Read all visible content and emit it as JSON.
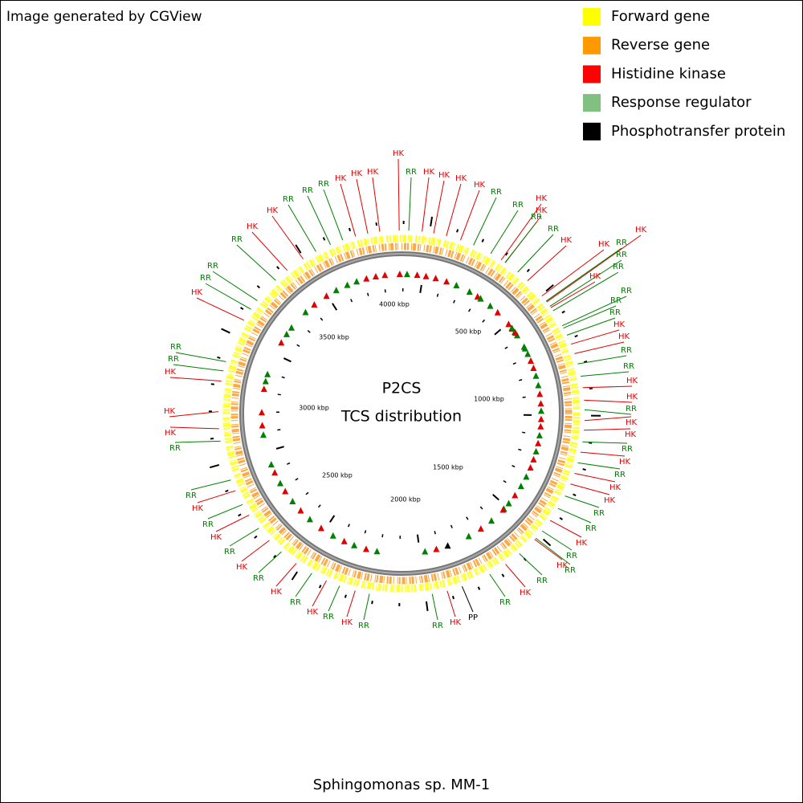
{
  "header": {
    "credit": "Image generated by CGView"
  },
  "legend": [
    {
      "label": "Forward gene",
      "color": "#ffff00"
    },
    {
      "label": "Reverse gene",
      "color": "#ff9900"
    },
    {
      "label": "Histidine kinase",
      "color": "#ff0000"
    },
    {
      "label": "Response regulator",
      "color": "#80c080"
    },
    {
      "label": "Phosphotransfer protein",
      "color": "#000000"
    }
  ],
  "center": {
    "title": "P2CS",
    "subtitle": "TCS distribution"
  },
  "ruler": [
    "4000 kbp",
    "500 kbp",
    "1000 kbp",
    "1500 kbp",
    "2000 kbp",
    "2500 kbp",
    "3000 kbp",
    "3500 kbp"
  ],
  "features": [
    {
      "label": "HK",
      "color": "#e00000"
    },
    {
      "label": "RR",
      "color": "#008000"
    },
    {
      "label": "HK",
      "color": "#e00000"
    },
    {
      "label": "HK",
      "color": "#e00000"
    },
    {
      "label": "HK",
      "color": "#e00000"
    },
    {
      "label": "HK",
      "color": "#e00000"
    },
    {
      "label": "RR",
      "color": "#008000"
    },
    {
      "label": "RR",
      "color": "#008000"
    },
    {
      "label": "HK",
      "color": "#e00000"
    },
    {
      "label": "HK",
      "color": "#e00000"
    },
    {
      "label": "RR",
      "color": "#008000"
    },
    {
      "label": "RR",
      "color": "#008000"
    },
    {
      "label": "HK",
      "color": "#e00000"
    },
    {
      "label": "HK",
      "color": "#e00000"
    },
    {
      "label": "HK",
      "color": "#e00000"
    },
    {
      "label": "RR",
      "color": "#008000"
    },
    {
      "label": "RR",
      "color": "#008000"
    },
    {
      "label": "RR",
      "color": "#008000"
    },
    {
      "label": "HK",
      "color": "#e00000"
    },
    {
      "label": "RR",
      "color": "#008000"
    },
    {
      "label": "RR",
      "color": "#008000"
    },
    {
      "label": "RR",
      "color": "#008000"
    },
    {
      "label": "HK",
      "color": "#e00000"
    },
    {
      "label": "HK",
      "color": "#e00000"
    },
    {
      "label": "RR",
      "color": "#008000"
    },
    {
      "label": "RR",
      "color": "#008000"
    },
    {
      "label": "HK",
      "color": "#e00000"
    },
    {
      "label": "HK",
      "color": "#e00000"
    },
    {
      "label": "RR",
      "color": "#008000"
    },
    {
      "label": "HK",
      "color": "#e00000"
    },
    {
      "label": "HK",
      "color": "#e00000"
    },
    {
      "label": "RR",
      "color": "#008000"
    },
    {
      "label": "HK",
      "color": "#e00000"
    },
    {
      "label": "RR",
      "color": "#008000"
    },
    {
      "label": "HK",
      "color": "#e00000"
    },
    {
      "label": "HK",
      "color": "#e00000"
    },
    {
      "label": "RR",
      "color": "#008000"
    },
    {
      "label": "RR",
      "color": "#008000"
    },
    {
      "label": "HK",
      "color": "#e00000"
    },
    {
      "label": "RR",
      "color": "#008000"
    },
    {
      "label": "RR",
      "color": "#008000"
    },
    {
      "label": "HK",
      "color": "#e00000"
    },
    {
      "label": "RR",
      "color": "#008000"
    },
    {
      "label": "HK",
      "color": "#e00000"
    },
    {
      "label": "RR",
      "color": "#008000"
    },
    {
      "label": "PP",
      "color": "#000000"
    },
    {
      "label": "HK",
      "color": "#e00000"
    },
    {
      "label": "RR",
      "color": "#008000"
    },
    {
      "label": "RR",
      "color": "#008000"
    },
    {
      "label": "HK",
      "color": "#e00000"
    },
    {
      "label": "RR",
      "color": "#008000"
    },
    {
      "label": "HK",
      "color": "#e00000"
    },
    {
      "label": "RR",
      "color": "#008000"
    },
    {
      "label": "HK",
      "color": "#e00000"
    },
    {
      "label": "RR",
      "color": "#008000"
    },
    {
      "label": "HK",
      "color": "#e00000"
    },
    {
      "label": "RR",
      "color": "#008000"
    },
    {
      "label": "HK",
      "color": "#e00000"
    },
    {
      "label": "RR",
      "color": "#008000"
    },
    {
      "label": "HK",
      "color": "#e00000"
    },
    {
      "label": "RR",
      "color": "#008000"
    },
    {
      "label": "RR",
      "color": "#008000"
    },
    {
      "label": "HK",
      "color": "#e00000"
    },
    {
      "label": "HK",
      "color": "#e00000"
    },
    {
      "label": "HK",
      "color": "#e00000"
    },
    {
      "label": "RR",
      "color": "#008000"
    },
    {
      "label": "RR",
      "color": "#008000"
    },
    {
      "label": "HK",
      "color": "#e00000"
    },
    {
      "label": "RR",
      "color": "#008000"
    },
    {
      "label": "RR",
      "color": "#008000"
    },
    {
      "label": "RR",
      "color": "#008000"
    },
    {
      "label": "HK",
      "color": "#e00000"
    },
    {
      "label": "HK",
      "color": "#e00000"
    },
    {
      "label": "RR",
      "color": "#008000"
    },
    {
      "label": "RR",
      "color": "#008000"
    },
    {
      "label": "RR",
      "color": "#008000"
    },
    {
      "label": "HK",
      "color": "#e00000"
    },
    {
      "label": "HK",
      "color": "#e00000"
    },
    {
      "label": "HK",
      "color": "#e00000"
    }
  ],
  "footer": {
    "organism": "Sphingomonas sp. MM-1"
  }
}
